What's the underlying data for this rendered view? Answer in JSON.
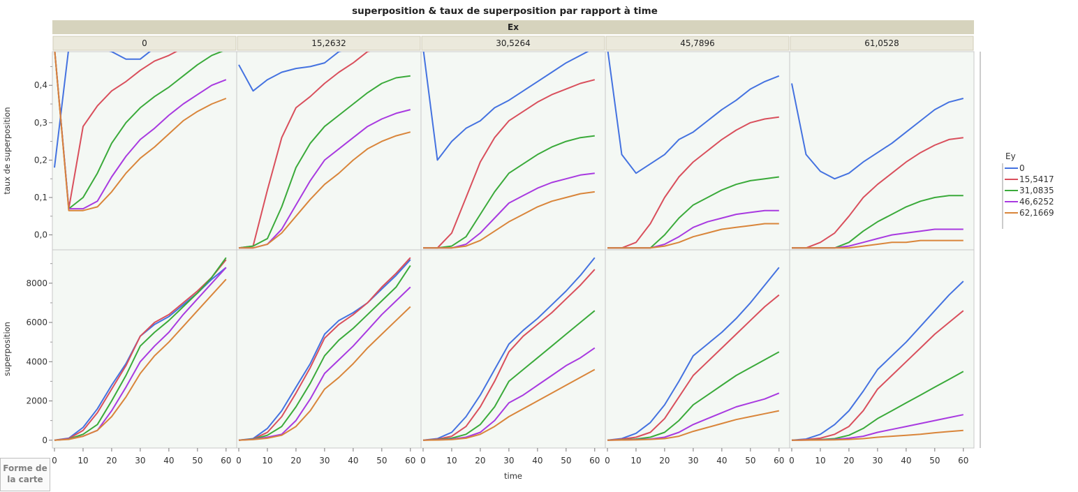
{
  "chart_data": {
    "type": "line",
    "title": "superposition & taux de superposition par rapport à time",
    "panel_group_label": "Ex",
    "panels": [
      "0",
      "15,2632",
      "30,5264",
      "45,7896",
      "61,0528"
    ],
    "x": [
      0,
      5,
      10,
      15,
      20,
      25,
      30,
      35,
      40,
      45,
      50,
      55,
      60
    ],
    "xlabel": "time",
    "xlim": [
      0,
      62
    ],
    "xticks": [
      "0",
      "10",
      "20",
      "30",
      "40",
      "50",
      "60"
    ],
    "legend": {
      "title": "Ey",
      "placement": "right",
      "series": [
        "0",
        "15,5417",
        "31,0835",
        "46,6252",
        "62,1669"
      ]
    },
    "colors": [
      "#4472e0",
      "#d94f5c",
      "#3aaa3a",
      "#a83ae0",
      "#d9853a"
    ],
    "rows": [
      {
        "ylabel": "taux de superposition",
        "ylim": [
          -0.04,
          0.49
        ],
        "yticks": [
          "0,0",
          "0,1",
          "0,2",
          "0,3",
          "0,4"
        ],
        "ytick_values": [
          0,
          0.1,
          0.2,
          0.3,
          0.4
        ],
        "data": [
          [
            [
              0.18,
              0.5,
              0.5,
              0.5,
              0.49,
              0.47,
              0.47,
              0.5,
              0.5,
              0.5,
              0.5,
              0.5,
              0.5
            ],
            [
              0.5,
              0.07,
              0.29,
              0.345,
              0.385,
              0.41,
              0.44,
              0.465,
              0.48,
              0.5,
              0.5,
              0.5,
              0.5
            ],
            [
              0.5,
              0.07,
              0.1,
              0.165,
              0.245,
              0.3,
              0.34,
              0.37,
              0.395,
              0.425,
              0.455,
              0.48,
              0.495
            ],
            [
              0.5,
              0.07,
              0.07,
              0.09,
              0.155,
              0.21,
              0.255,
              0.285,
              0.32,
              0.35,
              0.375,
              0.4,
              0.415
            ],
            [
              0.5,
              0.065,
              0.065,
              0.075,
              0.115,
              0.165,
              0.205,
              0.235,
              0.27,
              0.305,
              0.33,
              0.35,
              0.365
            ]
          ],
          [
            [
              0.455,
              0.385,
              0.415,
              0.435,
              0.445,
              0.45,
              0.46,
              0.49,
              0.5,
              0.5,
              0.5,
              0.5,
              0.5
            ],
            [
              -0.035,
              -0.03,
              0.12,
              0.26,
              0.34,
              0.37,
              0.405,
              0.435,
              0.46,
              0.49,
              0.5,
              0.5,
              0.5
            ],
            [
              -0.035,
              -0.03,
              -0.01,
              0.075,
              0.18,
              0.245,
              0.29,
              0.32,
              0.35,
              0.38,
              0.405,
              0.42,
              0.425
            ],
            [
              -0.035,
              -0.035,
              -0.025,
              0.015,
              0.08,
              0.145,
              0.2,
              0.23,
              0.26,
              0.29,
              0.31,
              0.325,
              0.335
            ],
            [
              -0.035,
              -0.035,
              -0.025,
              0.005,
              0.05,
              0.095,
              0.135,
              0.165,
              0.2,
              0.23,
              0.25,
              0.265,
              0.275
            ]
          ],
          [
            [
              0.5,
              0.2,
              0.25,
              0.285,
              0.305,
              0.34,
              0.36,
              0.385,
              0.41,
              0.435,
              0.46,
              0.48,
              0.5
            ],
            [
              -0.035,
              -0.035,
              0.005,
              0.1,
              0.195,
              0.26,
              0.305,
              0.33,
              0.355,
              0.375,
              0.39,
              0.405,
              0.415
            ],
            [
              -0.035,
              -0.035,
              -0.03,
              -0.005,
              0.055,
              0.115,
              0.165,
              0.19,
              0.215,
              0.235,
              0.25,
              0.26,
              0.265
            ],
            [
              -0.035,
              -0.035,
              -0.035,
              -0.025,
              0.005,
              0.045,
              0.085,
              0.105,
              0.125,
              0.14,
              0.15,
              0.16,
              0.165
            ],
            [
              -0.035,
              -0.035,
              -0.035,
              -0.03,
              -0.015,
              0.01,
              0.035,
              0.055,
              0.075,
              0.09,
              0.1,
              0.11,
              0.115
            ]
          ],
          [
            [
              0.5,
              0.215,
              0.165,
              0.19,
              0.215,
              0.255,
              0.275,
              0.305,
              0.335,
              0.36,
              0.39,
              0.41,
              0.425
            ],
            [
              -0.035,
              -0.035,
              -0.02,
              0.03,
              0.1,
              0.155,
              0.195,
              0.225,
              0.255,
              0.28,
              0.3,
              0.31,
              0.315
            ],
            [
              -0.035,
              -0.035,
              -0.035,
              -0.035,
              0.0,
              0.045,
              0.08,
              0.1,
              0.12,
              0.135,
              0.145,
              0.15,
              0.155
            ],
            [
              -0.035,
              -0.035,
              -0.035,
              -0.035,
              -0.025,
              -0.005,
              0.02,
              0.035,
              0.045,
              0.055,
              0.06,
              0.065,
              0.065
            ],
            [
              -0.035,
              -0.035,
              -0.035,
              -0.035,
              -0.03,
              -0.02,
              -0.005,
              0.005,
              0.015,
              0.02,
              0.025,
              0.03,
              0.03
            ]
          ],
          [
            [
              0.405,
              0.215,
              0.17,
              0.15,
              0.165,
              0.195,
              0.22,
              0.245,
              0.275,
              0.305,
              0.335,
              0.355,
              0.365
            ],
            [
              -0.035,
              -0.035,
              -0.02,
              0.005,
              0.05,
              0.1,
              0.135,
              0.165,
              0.195,
              0.22,
              0.24,
              0.255,
              0.26
            ],
            [
              -0.035,
              -0.035,
              -0.035,
              -0.035,
              -0.02,
              0.01,
              0.035,
              0.055,
              0.075,
              0.09,
              0.1,
              0.105,
              0.105
            ],
            [
              -0.035,
              -0.035,
              -0.035,
              -0.035,
              -0.03,
              -0.02,
              -0.01,
              0.0,
              0.005,
              0.01,
              0.015,
              0.015,
              0.015
            ],
            [
              -0.035,
              -0.035,
              -0.035,
              -0.035,
              -0.035,
              -0.03,
              -0.025,
              -0.02,
              -0.02,
              -0.015,
              -0.015,
              -0.015,
              -0.015
            ]
          ]
        ]
      },
      {
        "ylabel": "superposition",
        "ylim": [
          -400,
          9700
        ],
        "yticks": [
          "0",
          "2000",
          "4000",
          "6000",
          "8000"
        ],
        "ytick_values": [
          0,
          2000,
          4000,
          6000,
          8000
        ],
        "data": [
          [
            [
              0,
              100,
              650,
              1600,
              2800,
              3900,
              5300,
              5900,
              6300,
              6900,
              7500,
              8200,
              8800
            ],
            [
              0,
              80,
              500,
              1400,
              2600,
              3800,
              5300,
              6000,
              6400,
              7000,
              7600,
              8300,
              9200
            ],
            [
              0,
              60,
              300,
              800,
              2000,
              3300,
              4800,
              5500,
              6100,
              6800,
              7500,
              8300,
              9300
            ],
            [
              0,
              50,
              200,
              500,
              1500,
              2700,
              4000,
              4800,
              5500,
              6400,
              7200,
              8000,
              8800
            ],
            [
              0,
              40,
              200,
              500,
              1200,
              2200,
              3400,
              4300,
              5000,
              5800,
              6600,
              7400,
              8200
            ]
          ],
          [
            [
              0,
              80,
              600,
              1500,
              2700,
              3900,
              5400,
              6100,
              6500,
              7000,
              7700,
              8400,
              9200
            ],
            [
              0,
              60,
              400,
              1200,
              2400,
              3700,
              5200,
              5900,
              6400,
              7000,
              7800,
              8500,
              9300
            ],
            [
              0,
              50,
              250,
              700,
              1700,
              2900,
              4300,
              5100,
              5700,
              6400,
              7100,
              7800,
              8900
            ],
            [
              0,
              40,
              150,
              300,
              1000,
              2100,
              3400,
              4100,
              4800,
              5600,
              6400,
              7100,
              7800
            ],
            [
              0,
              30,
              100,
              250,
              700,
              1500,
              2600,
              3200,
              3900,
              4700,
              5400,
              6100,
              6800
            ]
          ],
          [
            [
              0,
              80,
              400,
              1200,
              2300,
              3600,
              4900,
              5600,
              6200,
              6900,
              7600,
              8400,
              9300
            ],
            [
              0,
              50,
              200,
              700,
              1700,
              3000,
              4500,
              5300,
              5900,
              6500,
              7200,
              7900,
              8700
            ],
            [
              0,
              30,
              100,
              300,
              800,
              1700,
              3000,
              3600,
              4200,
              4800,
              5400,
              6000,
              6600
            ],
            [
              0,
              20,
              50,
              150,
              400,
              1000,
              1900,
              2300,
              2800,
              3300,
              3800,
              4200,
              4700
            ],
            [
              0,
              10,
              30,
              100,
              300,
              700,
              1200,
              1600,
              2000,
              2400,
              2800,
              3200,
              3600
            ]
          ],
          [
            [
              0,
              80,
              350,
              900,
              1800,
              3000,
              4300,
              4900,
              5500,
              6200,
              7000,
              7900,
              8800
            ],
            [
              0,
              50,
              150,
              400,
              1100,
              2200,
              3300,
              4000,
              4700,
              5400,
              6100,
              6800,
              7400
            ],
            [
              0,
              20,
              60,
              150,
              400,
              1000,
              1800,
              2300,
              2800,
              3300,
              3700,
              4100,
              4500
            ],
            [
              0,
              10,
              30,
              60,
              150,
              400,
              800,
              1100,
              1400,
              1700,
              1900,
              2100,
              2400
            ],
            [
              0,
              10,
              20,
              40,
              80,
              200,
              450,
              650,
              850,
              1050,
              1200,
              1350,
              1500
            ]
          ],
          [
            [
              0,
              60,
              300,
              800,
              1500,
              2500,
              3600,
              4300,
              5000,
              5800,
              6600,
              7400,
              8100
            ],
            [
              0,
              30,
              100,
              300,
              700,
              1500,
              2600,
              3300,
              4000,
              4700,
              5400,
              6000,
              6600
            ],
            [
              0,
              10,
              30,
              80,
              250,
              600,
              1100,
              1500,
              1900,
              2300,
              2700,
              3100,
              3500
            ],
            [
              0,
              5,
              15,
              40,
              100,
              200,
              400,
              550,
              700,
              850,
              1000,
              1150,
              1300
            ],
            [
              0,
              5,
              10,
              20,
              40,
              80,
              150,
              200,
              250,
              300,
              380,
              440,
              500
            ]
          ]
        ]
      }
    ]
  },
  "corner_button": {
    "line1": "Forme de",
    "line2": "la carte"
  }
}
